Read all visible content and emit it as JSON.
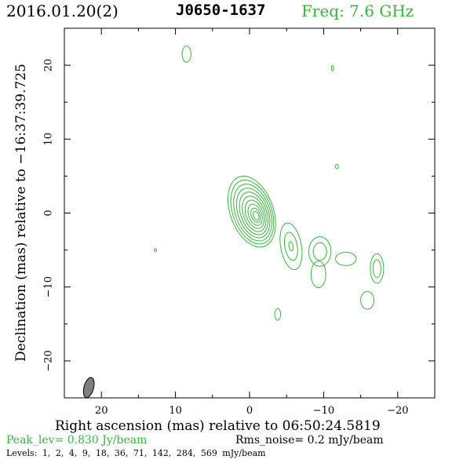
{
  "header": {
    "date": "2016.01.20(2)",
    "source": "J0650-1637",
    "freq": "Freq: 7.6 GHz"
  },
  "footer": {
    "peak": "Peak_lev=  0.830 Jy/beam",
    "rms": "Rms_noise=  0.2 mJy/beam",
    "levels": "Levels:  1,  2,  4,  9,  18,  36,  71, 142, 284, 569 mJy/beam"
  },
  "colors": {
    "contour": "#3cb040",
    "accent_text": "#3cb040",
    "beam": "#7f7f7f"
  },
  "chart_data": {
    "type": "contour",
    "title": "J0650-1637",
    "xlabel": "Right ascension (mas) relative to 06:50:24.5819",
    "ylabel": "Declination (mas) relative to −16:37:39.725",
    "xlim": [
      25,
      -25
    ],
    "ylim": [
      -25,
      25
    ],
    "xticks": [
      20,
      10,
      0,
      -10,
      -20
    ],
    "xtick_labels": [
      "20",
      "10",
      "0",
      "−10",
      "−20"
    ],
    "yticks": [
      20,
      10,
      0,
      -10,
      -20
    ],
    "ytick_labels": [
      "20",
      "10",
      "0",
      "−10",
      "−20"
    ],
    "levels_mjy": [
      1,
      2,
      4,
      9,
      18,
      36,
      71,
      142,
      284,
      569
    ],
    "peak_jy_per_beam": 0.83,
    "rms_mjy_per_beam": 0.2,
    "core": {
      "x": -0.3,
      "y": 0.2,
      "pa_deg": -20,
      "rx_max": 2.9,
      "ry_max": 5.0,
      "n_contours": 10
    },
    "components": [
      {
        "x": 8.5,
        "y": 21.5,
        "rx": 0.6,
        "ry": 1.1,
        "pa": 0,
        "n": 1
      },
      {
        "x": -11.2,
        "y": 19.6,
        "rx": 0.15,
        "ry": 0.35,
        "pa": 0,
        "n": 1
      },
      {
        "x": -11.8,
        "y": 6.3,
        "rx": 0.2,
        "ry": 0.3,
        "pa": 0,
        "n": 1
      },
      {
        "x": 12.7,
        "y": -5.0,
        "rx": 0.15,
        "ry": 0.2,
        "pa": 0,
        "n": 1
      },
      {
        "x": -5.6,
        "y": -4.5,
        "rx": 1.4,
        "ry": 3.2,
        "pa": -10,
        "n": 3
      },
      {
        "x": -9.5,
        "y": -5.2,
        "rx": 1.5,
        "ry": 2.0,
        "pa": 0,
        "n": 2
      },
      {
        "x": -9.3,
        "y": -8.3,
        "rx": 1.0,
        "ry": 1.8,
        "pa": 0,
        "n": 1
      },
      {
        "x": -13.0,
        "y": -6.2,
        "rx": 1.4,
        "ry": 0.9,
        "pa": 0,
        "n": 1
      },
      {
        "x": -17.2,
        "y": -7.5,
        "rx": 0.9,
        "ry": 2.0,
        "pa": 0,
        "n": 2
      },
      {
        "x": -3.8,
        "y": -13.7,
        "rx": 0.4,
        "ry": 0.8,
        "pa": 0,
        "n": 1
      },
      {
        "x": -15.9,
        "y": -11.8,
        "rx": 0.9,
        "ry": 1.2,
        "pa": 0,
        "n": 1
      }
    ],
    "beam": {
      "x": 21.7,
      "y": -23.6,
      "rx": 0.65,
      "ry": 1.4,
      "pa": 15
    }
  }
}
